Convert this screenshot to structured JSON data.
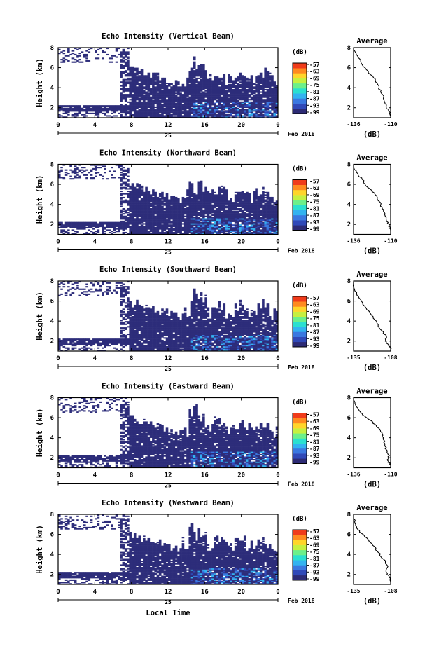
{
  "chart_data": [
    {
      "type": "heatmap",
      "title": "Echo Intensity (Vertical Beam)",
      "ylabel": "Height (km)",
      "xticks": [
        "0",
        "4",
        "8",
        "12",
        "16",
        "20",
        "0"
      ],
      "yticks": [
        "2",
        "4",
        "6",
        "8"
      ],
      "ylim": [
        1,
        8
      ],
      "xlim": [
        0,
        24
      ],
      "day_label": "25",
      "date_label": "Feb 2018",
      "colorbar": {
        "unit": "(dB)",
        "ticks": [
          "-57",
          "-63",
          "-69",
          "-75",
          "-81",
          "-87",
          "-93",
          "-99"
        ]
      },
      "average": {
        "title": "Average",
        "xlabel": "(dB)",
        "xticks": [
          "-136",
          "-110"
        ],
        "yticks": [
          "2",
          "4",
          "6",
          "8"
        ],
        "xlim": [
          -136,
          -110
        ]
      },
      "profile": [
        [
          -136,
          7.9
        ],
        [
          -134,
          7.3
        ],
        [
          -131,
          6.6
        ],
        [
          -127,
          5.8
        ],
        [
          -122,
          5.0
        ],
        [
          -119,
          4.3
        ],
        [
          -117,
          3.6
        ],
        [
          -115,
          3.0
        ],
        [
          -114,
          2.5
        ],
        [
          -113,
          2.0
        ],
        [
          -111,
          1.6
        ],
        [
          -110,
          1.2
        ]
      ],
      "seed": 11
    },
    {
      "type": "heatmap",
      "title": "Echo Intensity (Northward Beam)",
      "ylabel": "Height (km)",
      "xticks": [
        "0",
        "4",
        "8",
        "12",
        "16",
        "20",
        "0"
      ],
      "yticks": [
        "2",
        "4",
        "6",
        "8"
      ],
      "ylim": [
        1,
        8
      ],
      "xlim": [
        0,
        24
      ],
      "day_label": "25",
      "date_label": "Feb 2018",
      "colorbar": {
        "unit": "(dB)",
        "ticks": [
          "-57",
          "-63",
          "-69",
          "-75",
          "-81",
          "-87",
          "-93",
          "-99"
        ]
      },
      "average": {
        "title": "Average",
        "xlabel": "(dB)",
        "xticks": [
          "-136",
          "-110"
        ],
        "yticks": [
          "2",
          "4",
          "6",
          "8"
        ],
        "xlim": [
          -136,
          -110
        ]
      },
      "profile": [
        [
          -136,
          7.9
        ],
        [
          -134,
          7.2
        ],
        [
          -130,
          6.5
        ],
        [
          -126,
          5.7
        ],
        [
          -121,
          5.0
        ],
        [
          -118,
          4.3
        ],
        [
          -116,
          3.7
        ],
        [
          -114,
          3.1
        ],
        [
          -113,
          2.4
        ],
        [
          -111,
          1.9
        ],
        [
          -110,
          1.4
        ]
      ],
      "seed": 23
    },
    {
      "type": "heatmap",
      "title": "Echo Intensity (Southward Beam)",
      "ylabel": "Height (km)",
      "xticks": [
        "0",
        "4",
        "8",
        "12",
        "16",
        "20",
        "0"
      ],
      "yticks": [
        "2",
        "4",
        "6",
        "8"
      ],
      "ylim": [
        1,
        8
      ],
      "xlim": [
        0,
        24
      ],
      "day_label": "25",
      "date_label": "Feb 2018",
      "colorbar": {
        "unit": "(dB)",
        "ticks": [
          "-57",
          "-63",
          "-69",
          "-75",
          "-81",
          "-87",
          "-93",
          "-99"
        ]
      },
      "average": {
        "title": "Average",
        "xlabel": "(dB)",
        "xticks": [
          "-135",
          "-108"
        ],
        "yticks": [
          "2",
          "4",
          "6",
          "8"
        ],
        "xlim": [
          -135,
          -108
        ]
      },
      "profile": [
        [
          -135,
          7.9
        ],
        [
          -134,
          7.0
        ],
        [
          -131,
          6.3
        ],
        [
          -127,
          5.5
        ],
        [
          -122,
          4.6
        ],
        [
          -118,
          3.8
        ],
        [
          -114,
          3.0
        ],
        [
          -111,
          2.5
        ],
        [
          -112,
          2.0
        ],
        [
          -109,
          1.6
        ],
        [
          -108,
          1.2
        ]
      ],
      "seed": 37
    },
    {
      "type": "heatmap",
      "title": "Echo Intensity (Eastward Beam)",
      "ylabel": "Height (km)",
      "xticks": [
        "0",
        "4",
        "8",
        "12",
        "16",
        "20",
        "0"
      ],
      "yticks": [
        "2",
        "4",
        "6",
        "8"
      ],
      "ylim": [
        1,
        8
      ],
      "xlim": [
        0,
        24
      ],
      "day_label": "25",
      "date_label": "Feb 2018",
      "colorbar": {
        "unit": "(dB)",
        "ticks": [
          "-57",
          "-63",
          "-69",
          "-75",
          "-81",
          "-87",
          "-93",
          "-99"
        ]
      },
      "average": {
        "title": "Average",
        "xlabel": "(dB)",
        "xticks": [
          "-136",
          "-110"
        ],
        "yticks": [
          "2",
          "4",
          "6",
          "8"
        ],
        "xlim": [
          -136,
          -110
        ]
      },
      "profile": [
        [
          -136,
          7.9
        ],
        [
          -134,
          7.1
        ],
        [
          -130,
          6.4
        ],
        [
          -125,
          5.8
        ],
        [
          -120,
          5.2
        ],
        [
          -117,
          4.6
        ],
        [
          -115,
          4.0
        ],
        [
          -114,
          3.4
        ],
        [
          -113,
          2.8
        ],
        [
          -111,
          2.2
        ],
        [
          -112,
          1.7
        ],
        [
          -110,
          1.3
        ]
      ],
      "seed": 41
    },
    {
      "type": "heatmap",
      "title": "Echo Intensity (Westward Beam)",
      "ylabel": "Height (km)",
      "xlabel": "Local Time",
      "xticks": [
        "0",
        "4",
        "8",
        "12",
        "16",
        "20",
        "0"
      ],
      "yticks": [
        "2",
        "4",
        "6",
        "8"
      ],
      "ylim": [
        1,
        8
      ],
      "xlim": [
        0,
        24
      ],
      "day_label": "25",
      "date_label": "Feb 2018",
      "colorbar": {
        "unit": "(dB)",
        "ticks": [
          "-57",
          "-63",
          "-69",
          "-75",
          "-81",
          "-87",
          "-93",
          "-99"
        ]
      },
      "average": {
        "title": "Average",
        "xlabel": "(dB)",
        "xticks": [
          "-135",
          "-108"
        ],
        "yticks": [
          "2",
          "4",
          "6",
          "8"
        ],
        "xlim": [
          -135,
          -108
        ]
      },
      "profile": [
        [
          -135,
          7.9
        ],
        [
          -134,
          7.1
        ],
        [
          -132,
          6.5
        ],
        [
          -127,
          5.8
        ],
        [
          -121,
          4.9
        ],
        [
          -117,
          4.2
        ],
        [
          -113,
          3.5
        ],
        [
          -110,
          2.8
        ],
        [
          -111,
          2.2
        ],
        [
          -109,
          1.7
        ],
        [
          -108,
          1.3
        ]
      ],
      "seed": 53
    }
  ],
  "colors": {
    "base": "#2d2d7a",
    "colorbar": [
      "#2d2b75",
      "#3049b8",
      "#3a78e0",
      "#33b3f0",
      "#2be0d0",
      "#6cf08a",
      "#c6f040",
      "#ffd52a",
      "#ff8a1f",
      "#f03b1a"
    ]
  }
}
